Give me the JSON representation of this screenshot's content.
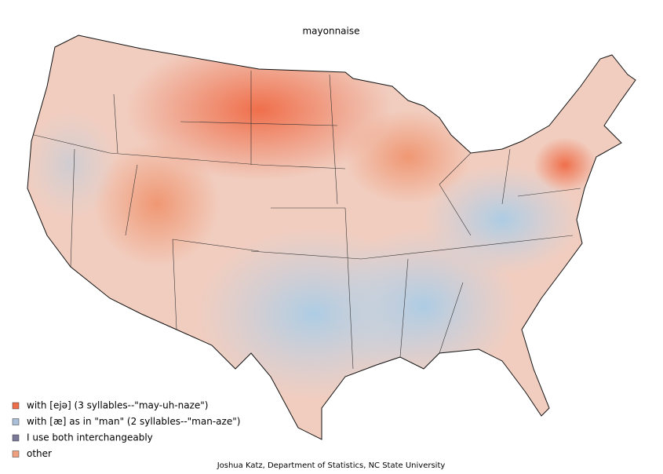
{
  "title": "mayonnaise",
  "legend": [
    {
      "label": "with [ejə] (3 syllables--\"may-uh-naze\")",
      "color": "#ee6e4c"
    },
    {
      "label": "with [æ] as in \"man\" (2 syllables--\"man-aze\")",
      "color": "#a9c0d8"
    },
    {
      "label": "I use both interchangeably",
      "color": "#7a7898"
    },
    {
      "label": "other",
      "color": "#f0a07e"
    }
  ],
  "credit": "Joshua Katz, Department of Statistics, NC State University"
}
